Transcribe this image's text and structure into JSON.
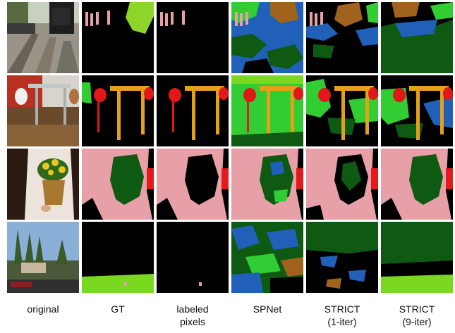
{
  "figure": {
    "column_labels": [
      {
        "line1": "original",
        "line2": ""
      },
      {
        "line1": "GT",
        "line2": ""
      },
      {
        "line1": "labeled",
        "line2": "pixels"
      },
      {
        "line1": "SPNet",
        "line2": ""
      },
      {
        "line1": "STRICT",
        "line2": "(1-iter)"
      },
      {
        "line1": "STRICT",
        "line2": "(9-iter)"
      }
    ],
    "row_scenes": [
      "train-station",
      "dining-room",
      "person-holding-flowers",
      "town-with-trees"
    ],
    "class_colors": {
      "background": "#000000",
      "person": "#e8a0a8",
      "train_or_red_object": "#e31a1c",
      "table": "#e3a018",
      "chair": "#e01818",
      "grass_green": "#32cd32",
      "lime_green": "#7bd820",
      "dark_green_plant": "#0e5a12",
      "blue_class": "#2060b8",
      "brown_class": "#a0621c"
    }
  }
}
